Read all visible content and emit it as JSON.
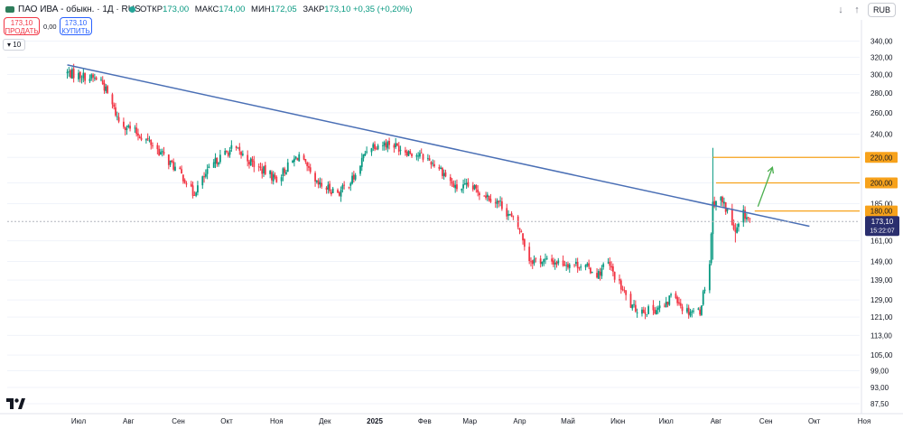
{
  "header": {
    "title": "ПАО ИВА - обыкн. · 1Д · RUS",
    "ohlc": [
      {
        "label": "ОТКР",
        "value": "173,00"
      },
      {
        "label": "МАКС",
        "value": "174,00"
      },
      {
        "label": "МИН",
        "value": "172,05"
      },
      {
        "label": "ЗАКР",
        "value": "173,10 +0,35 (+0,20%)"
      }
    ],
    "currency": "RUB",
    "arrow_down": "↓",
    "arrow_up": "↑"
  },
  "trade": {
    "sell_price": "173,10",
    "sell_label": "ПРОДАТЬ",
    "spread": "0,00",
    "buy_price": "173,10",
    "buy_label": "КУПИТЬ"
  },
  "indicator_toggle": "10",
  "colors": {
    "up": "#089981",
    "down": "#f23645",
    "trendline": "#4a6fb5",
    "level": "#f7a21b",
    "arrow": "#4caf50",
    "price_label": "#2a2e6e"
  },
  "chart_data": {
    "type": "candlestick",
    "scale": "log",
    "y_ticks": [
      "340,00",
      "320,00",
      "300,00",
      "280,00",
      "260,00",
      "240,00",
      "220,00",
      "200,00",
      "185,00",
      "173,10",
      "161,00",
      "149,00",
      "139,00",
      "129,00",
      "121,00",
      "113,00",
      "105,00",
      "99,00",
      "93,00",
      "87,50"
    ],
    "x_ticks": [
      "Июл",
      "Авг",
      "Сен",
      "Окт",
      "Ноя",
      "Дек",
      "2025",
      "Фев",
      "Мар",
      "Апр",
      "Май",
      "Июн",
      "Июл",
      "Авг",
      "Сен",
      "Окт",
      "Ноя"
    ],
    "ylim": [
      85,
      360
    ],
    "waypoints": [
      {
        "date": "2024-06-24",
        "price": 302
      },
      {
        "date": "2024-07-15",
        "price": 294
      },
      {
        "date": "2024-07-26",
        "price": 252
      },
      {
        "date": "2024-08-15",
        "price": 232
      },
      {
        "date": "2024-09-05",
        "price": 203
      },
      {
        "date": "2024-09-10",
        "price": 192
      },
      {
        "date": "2024-09-25",
        "price": 218
      },
      {
        "date": "2024-10-05",
        "price": 228
      },
      {
        "date": "2024-10-20",
        "price": 212
      },
      {
        "date": "2024-11-01",
        "price": 203
      },
      {
        "date": "2024-11-15",
        "price": 222
      },
      {
        "date": "2024-11-25",
        "price": 199
      },
      {
        "date": "2024-12-10",
        "price": 193
      },
      {
        "date": "2024-12-20",
        "price": 205
      },
      {
        "date": "2024-12-28",
        "price": 230
      },
      {
        "date": "2025-01-10",
        "price": 232
      },
      {
        "date": "2025-01-20",
        "price": 226
      },
      {
        "date": "2025-02-01",
        "price": 220
      },
      {
        "date": "2025-02-10",
        "price": 212
      },
      {
        "date": "2025-02-20",
        "price": 196
      },
      {
        "date": "2025-03-01",
        "price": 197
      },
      {
        "date": "2025-03-10",
        "price": 192
      },
      {
        "date": "2025-03-20",
        "price": 185
      },
      {
        "date": "2025-04-01",
        "price": 168
      },
      {
        "date": "2025-04-07",
        "price": 150
      },
      {
        "date": "2025-04-20",
        "price": 149
      },
      {
        "date": "2025-05-10",
        "price": 147
      },
      {
        "date": "2025-05-20",
        "price": 142
      },
      {
        "date": "2025-05-25",
        "price": 149
      },
      {
        "date": "2025-06-01",
        "price": 138
      },
      {
        "date": "2025-06-10",
        "price": 125
      },
      {
        "date": "2025-06-20",
        "price": 124
      },
      {
        "date": "2025-07-01",
        "price": 126
      },
      {
        "date": "2025-07-05",
        "price": 134
      },
      {
        "date": "2025-07-12",
        "price": 124
      },
      {
        "date": "2025-07-22",
        "price": 124
      },
      {
        "date": "2025-07-28",
        "price": 148
      },
      {
        "date": "2025-07-30",
        "price": 185
      },
      {
        "date": "2025-08-03",
        "price": 190
      },
      {
        "date": "2025-08-08",
        "price": 180
      },
      {
        "date": "2025-08-13",
        "price": 165
      },
      {
        "date": "2025-08-18",
        "price": 178
      },
      {
        "date": "2025-08-23",
        "price": 173
      }
    ],
    "spikes": [
      {
        "date": "2025-07-30",
        "high": 228,
        "low": 150
      },
      {
        "date": "2025-08-03",
        "high": 205,
        "low": 175
      },
      {
        "date": "2025-08-13",
        "high": 172,
        "low": 160
      }
    ],
    "trendline": {
      "start": {
        "date": "2024-06-24",
        "price": 311
      },
      "end": {
        "date": "2025-09-28",
        "price": 170
      }
    },
    "levels": [
      {
        "price": 220,
        "label": "220,00",
        "from_date": "2025-07-30"
      },
      {
        "price": 200,
        "label": "200,00",
        "from_date": "2025-08-01"
      },
      {
        "price": 180,
        "label": "180,00",
        "from_date": "2025-08-25"
      }
    ],
    "current_price": {
      "price": 173.1,
      "label": "173,10",
      "countdown": "15:22:07"
    },
    "arrow": {
      "from": {
        "date": "2025-08-27",
        "price": 183
      },
      "to": {
        "date": "2025-09-05",
        "price": 212
      }
    }
  }
}
